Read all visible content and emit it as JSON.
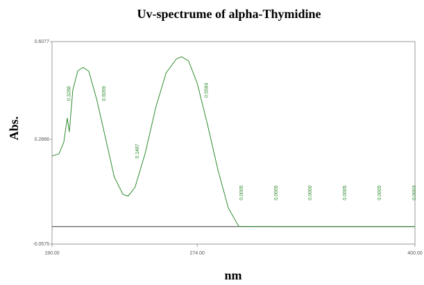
{
  "chart_data": {
    "type": "line",
    "title": "Uv-spectrume of alpha-Thymidine",
    "x_label": "nm",
    "y_label": "Abs.",
    "x": [
      190,
      194,
      196.8,
      198.8,
      200,
      202,
      204.9,
      208,
      211.3,
      216,
      221,
      226,
      231,
      234,
      238,
      244,
      250,
      256,
      262,
      265,
      269,
      274,
      280,
      286,
      292,
      298,
      320,
      360,
      400
    ],
    "series": [
      {
        "name": "alpha-Thymidine",
        "color": "#2e8b2e",
        "values": [
          0.232,
          0.239,
          0.277,
          0.357,
          0.311,
          0.448,
          0.512,
          0.523,
          0.51,
          0.414,
          0.289,
          0.163,
          0.106,
          0.1,
          0.129,
          0.243,
          0.391,
          0.505,
          0.551,
          0.558,
          0.544,
          0.471,
          0.334,
          0.186,
          0.061,
          0.001,
          0,
          0,
          0
        ]
      }
    ],
    "xlim": [
      190,
      400
    ],
    "xticks": [
      {
        "value": 190,
        "label": "190.00"
      },
      {
        "value": 274,
        "label": "274.00"
      },
      {
        "value": 400,
        "label": "400.00"
      }
    ],
    "ylim": [
      -0.0575,
      0.6077
    ],
    "yticks": [
      -0.0575,
      0.2866,
      0.6077
    ],
    "annotations": [
      {
        "text": "0.3288",
        "x": 200,
        "y": 0.437
      },
      {
        "text": "0.5059",
        "x": 220.1,
        "y": 0.437
      },
      {
        "text": "0.1487",
        "x": 239.4,
        "y": 0.248
      },
      {
        "text": "0.5584",
        "x": 279.5,
        "y": 0.448
      },
      {
        "text": "0.0005",
        "x": 299.6,
        "y": 0.111
      },
      {
        "text": "0.0005",
        "x": 319.7,
        "y": 0.111
      },
      {
        "text": "0.0000",
        "x": 339.4,
        "y": 0.111
      },
      {
        "text": "0.0005",
        "x": 359.5,
        "y": 0.111
      },
      {
        "text": "0.0005",
        "x": 379.6,
        "y": 0.111
      },
      {
        "text": "0.0003",
        "x": 399.6,
        "y": 0.111
      }
    ]
  }
}
